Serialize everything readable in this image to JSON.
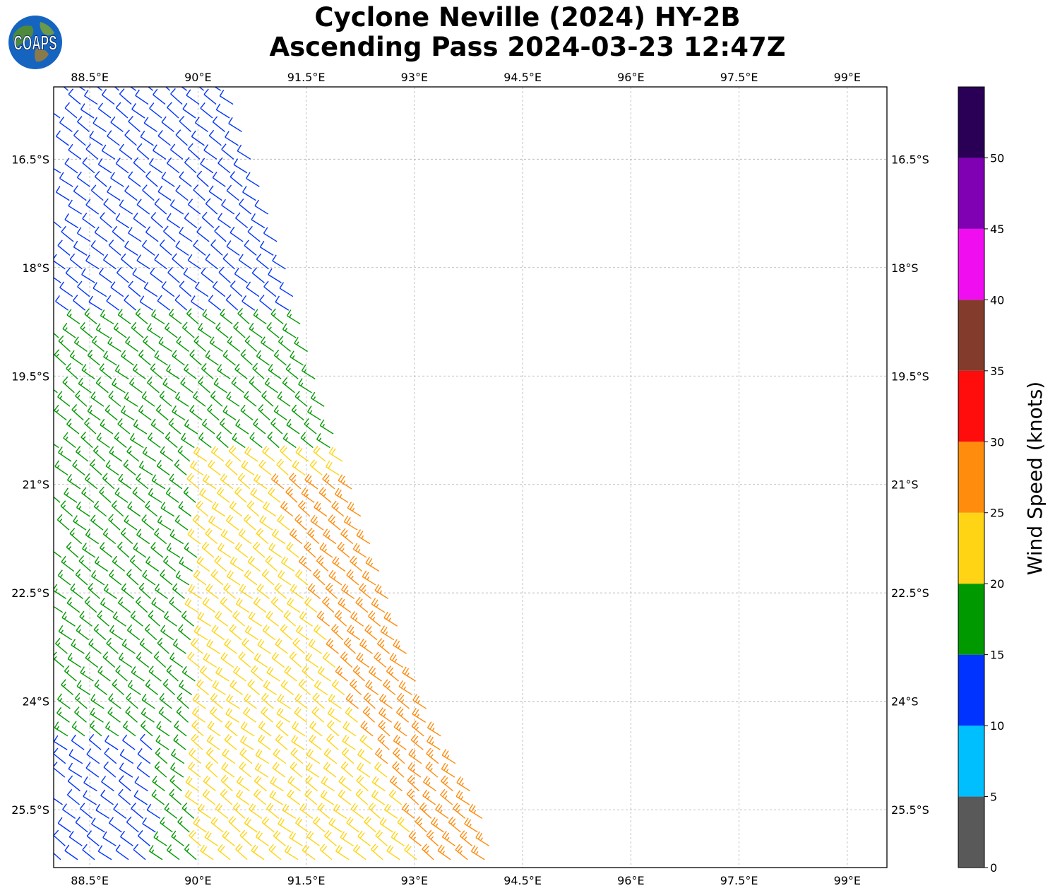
{
  "title": {
    "line1": "Cyclone Neville (2024) HY-2B",
    "line2": "Ascending Pass 2024-03-23 12:47Z"
  },
  "logo": {
    "text": "COAPS"
  },
  "chart_data": {
    "type": "scatter",
    "subtype": "wind barbs",
    "grid": true,
    "xlim": [
      88.0,
      99.55
    ],
    "ylim": [
      -26.3,
      -15.5
    ],
    "x_ticks": [
      88.5,
      90,
      91.5,
      93,
      94.5,
      96,
      97.5,
      99
    ],
    "x_tick_labels": [
      "88.5°E",
      "90°E",
      "91.5°E",
      "93°E",
      "94.5°E",
      "96°E",
      "97.5°E",
      "99°E"
    ],
    "y_ticks": [
      -16.5,
      -18,
      -19.5,
      -21,
      -22.5,
      -24,
      -25.5
    ],
    "y_tick_labels": [
      "16.5°S",
      "18°S",
      "19.5°S",
      "21°S",
      "22.5°S",
      "24°S",
      "25.5°S"
    ],
    "swath": {
      "east_edge": [
        [
          -15.5,
          90.3
        ],
        [
          -18.0,
          91.1
        ],
        [
          -19.5,
          91.5
        ],
        [
          -21.0,
          92.0
        ],
        [
          -22.5,
          92.5
        ],
        [
          -24.0,
          93.0
        ],
        [
          -25.5,
          93.8
        ],
        [
          -26.3,
          94.0
        ]
      ],
      "speed_bands_kt": [
        {
          "lat_from": -15.5,
          "lat_to": -18.6,
          "speed": 13
        },
        {
          "lat_from": -18.6,
          "lat_to": -20.5,
          "speed": 18
        },
        {
          "lat_from": -20.5,
          "lat_to": -26.3,
          "speed": 22
        }
      ]
    },
    "colorbar": {
      "label": "Wind Speed (knots)",
      "ticks": [
        0,
        5,
        10,
        15,
        20,
        25,
        30,
        35,
        40,
        45,
        50
      ],
      "bounds": [
        0,
        5,
        10,
        15,
        20,
        25,
        30,
        35,
        40,
        45,
        50,
        55
      ],
      "colors": [
        "#595959",
        "#00bfff",
        "#0033ff",
        "#009900",
        "#ffd414",
        "#ff8c0d",
        "#ff0d0d",
        "#833b2b",
        "#f00ef0",
        "#8000b3",
        "#2a0057"
      ]
    }
  }
}
